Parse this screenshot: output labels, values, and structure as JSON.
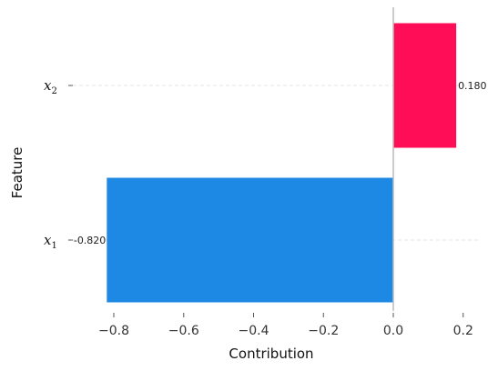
{
  "chart_data": {
    "type": "bar",
    "orientation": "horizontal",
    "categories": [
      "x2",
      "x1"
    ],
    "category_labels": [
      {
        "base": "x",
        "sub": "2"
      },
      {
        "base": "x",
        "sub": "1"
      }
    ],
    "values": [
      0.18,
      -0.82
    ],
    "value_labels": [
      "0.180",
      "-0.820"
    ],
    "xlabel": "Contribution",
    "ylabel": "Feature",
    "xlim": [
      -0.85,
      0.25
    ],
    "xticks": [
      -0.8,
      -0.6,
      -0.4,
      -0.2,
      0.0,
      0.2
    ],
    "xtick_labels": [
      "−0.8",
      "−0.6",
      "−0.4",
      "−0.2",
      "0.0",
      "0.2"
    ],
    "colors": {
      "positive": "#ff0d57",
      "negative": "#1e88e5",
      "zero_line": "#bbbbbb",
      "grid": "#e6e6e6"
    },
    "grid": true,
    "legend": "none"
  }
}
